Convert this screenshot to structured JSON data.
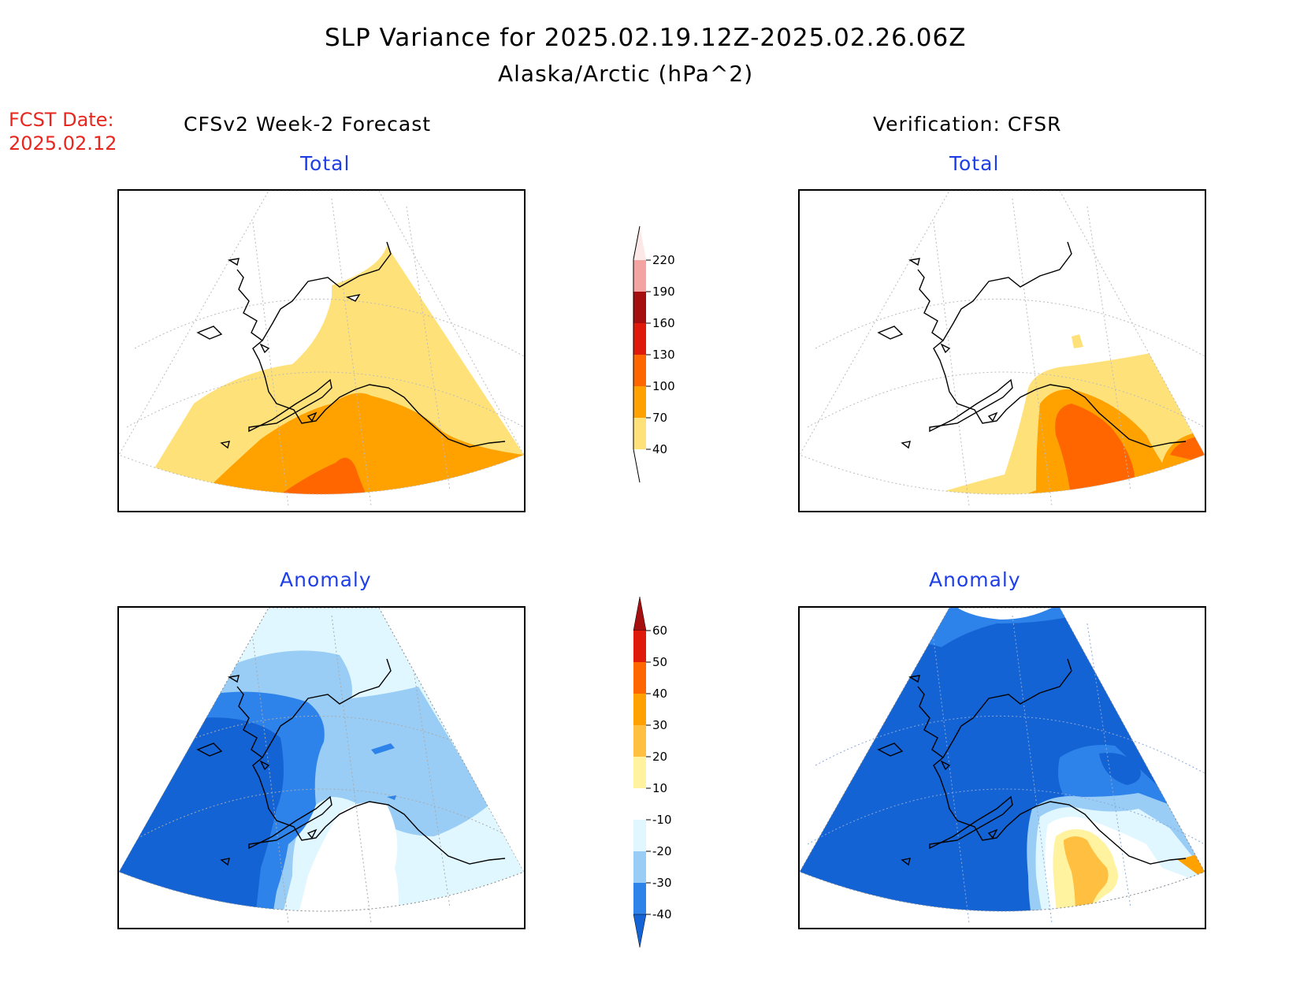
{
  "title": "SLP Variance for 2025.02.19.12Z-2025.02.26.06Z",
  "subtitle": "Alaska/Arctic (hPa^2)",
  "forecast_date": {
    "label": "FCST Date:",
    "value": "2025.02.12"
  },
  "columns": {
    "left": "CFSv2 Week-2 Forecast",
    "right": "Verification: CFSR"
  },
  "panels": {
    "total_label": "Total",
    "anomaly_label": "Anomaly"
  },
  "colorbars": {
    "total": {
      "levels": [
        "220",
        "190",
        "160",
        "130",
        "100",
        "70",
        "40"
      ],
      "colors": [
        "#fde8e8",
        "#f4a3a3",
        "#a50f0f",
        "#e01a0a",
        "#ff6600",
        "#ffa200",
        "#ffe17a"
      ]
    },
    "anomaly": {
      "levels": [
        "60",
        "50",
        "40",
        "30",
        "20",
        "10",
        "-10",
        "-20",
        "-30",
        "-40"
      ],
      "colors": [
        "#a50f0f",
        "#e01a0a",
        "#ff6600",
        "#ffa200",
        "#ffbf40",
        "#fff3a0",
        "#ffffff",
        "#e0f7ff",
        "#99cdf5",
        "#2e83ea",
        "#1463d4"
      ]
    }
  },
  "map_colors": {
    "total_40_70": "#ffe17a",
    "total_70_100": "#ffa200",
    "total_100_130": "#ff6600",
    "anom_lt_m40": "#1463d4",
    "anom_m40_m30": "#2e83ea",
    "anom_m30_m20": "#99cdf5",
    "anom_m20_m10": "#e0f7ff",
    "anom_10_20": "#fff3a0",
    "anom_20_30": "#ffbf40",
    "anom_30_40": "#ffa200"
  }
}
